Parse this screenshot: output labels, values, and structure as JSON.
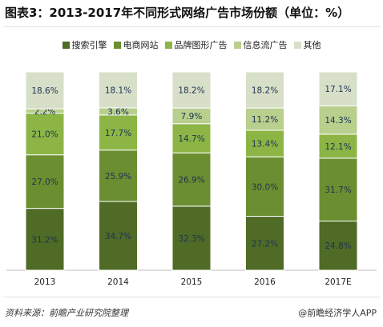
{
  "title": "图表3：2013-2017年不同形式网络广告市场份额（单位：%）",
  "source": "资料来源：前瞻产业研究院整理",
  "credit": "@前瞻经济学人APP",
  "chart_data": {
    "type": "bar",
    "stacked": true,
    "percent": true,
    "categories": [
      "2013",
      "2014",
      "2015",
      "2016",
      "2017E"
    ],
    "series": [
      {
        "name": "搜索引擎",
        "color": "#4f6b26",
        "values": [
          31.2,
          34.7,
          32.3,
          27.2,
          24.8
        ]
      },
      {
        "name": "电商网站",
        "color": "#6b8f30",
        "values": [
          27.0,
          25.9,
          26.9,
          30.0,
          31.7
        ]
      },
      {
        "name": "品牌图形广告",
        "color": "#8cb545",
        "values": [
          21.0,
          17.7,
          14.7,
          13.4,
          12.1
        ]
      },
      {
        "name": "信息流广告",
        "color": "#b8cf8e",
        "values": [
          2.2,
          3.6,
          7.9,
          11.2,
          14.3
        ]
      },
      {
        "name": "其他",
        "color": "#d7dfc8",
        "values": [
          18.6,
          18.1,
          18.2,
          18.2,
          17.1
        ]
      }
    ],
    "data_labels": [
      [
        "31.2%",
        "34.7%",
        "32.3%",
        "27.2%",
        "24.8%"
      ],
      [
        "27.0%",
        "25.9%",
        "26.9%",
        "30.0%",
        "31.7%"
      ],
      [
        "21.0%",
        "17.7%",
        "14.7%",
        "13.4%",
        "12.1%"
      ],
      [
        "2.2%",
        "3.6%",
        "7.9%",
        "11.2%",
        "14.3%"
      ],
      [
        "18.6%",
        "18.1%",
        "18.2%",
        "18.2%",
        "17.1%"
      ]
    ],
    "ylim": [
      0,
      100
    ],
    "legend_position": "top"
  }
}
